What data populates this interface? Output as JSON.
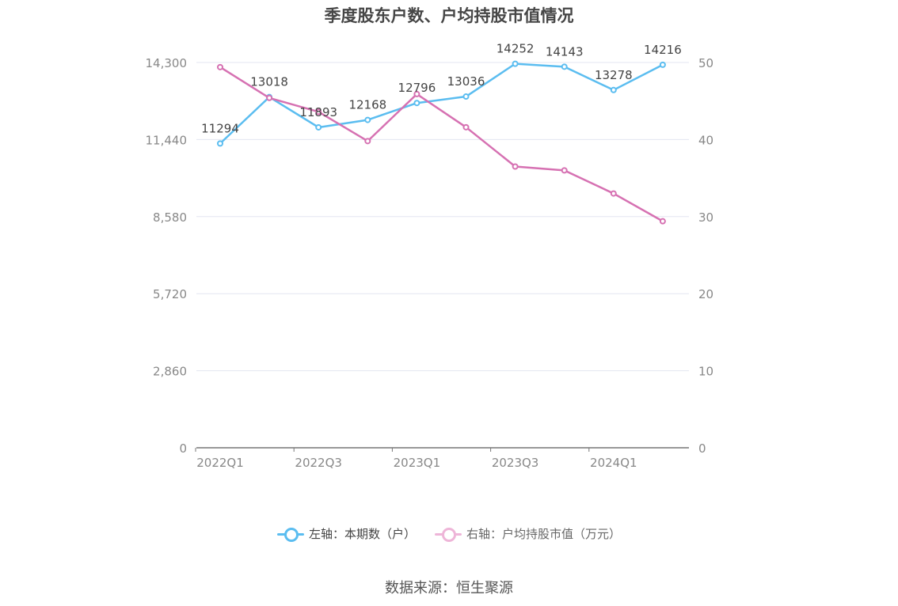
{
  "title": "季度股东户数、户均持股市值情况",
  "source": "数据来源：恒生聚源",
  "colors": {
    "left_series": "#5bbdf0",
    "right_series": "#d671b2",
    "grid": "#e3e6f0",
    "axis": "#888888"
  },
  "chart_data": {
    "type": "line",
    "categories": [
      "2022Q1",
      "2022Q2",
      "2022Q3",
      "2022Q4",
      "2023Q1",
      "2023Q2",
      "2023Q3",
      "2023Q4",
      "2024Q1",
      "2024Q2"
    ],
    "x_tick_labels": [
      "2022Q1",
      "2022Q3",
      "2023Q1",
      "2023Q3",
      "2024Q1"
    ],
    "left_axis": {
      "ticks": [
        "0",
        "2,860",
        "5,720",
        "8,580",
        "11,440",
        "14,300"
      ],
      "range": [
        0,
        14300
      ]
    },
    "right_axis": {
      "ticks": [
        "0",
        "10",
        "20",
        "30",
        "40",
        "50"
      ],
      "range": [
        0,
        50
      ]
    },
    "series": [
      {
        "name": "左轴：本期数（户）",
        "axis": "left",
        "values": [
          11294,
          13018,
          11893,
          12168,
          12796,
          13036,
          14252,
          14143,
          13278,
          14216
        ],
        "labels": [
          "11294",
          "13018",
          "11893",
          "12168",
          "12796",
          "13036",
          "14252",
          "14143",
          "13278",
          "14216"
        ]
      },
      {
        "name": "右轴：户均持股市值（万元）",
        "axis": "right",
        "values": [
          49.4,
          45.4,
          43.6,
          39.8,
          45.9,
          41.6,
          36.5,
          36.0,
          33.0,
          29.4
        ]
      }
    ],
    "grid": true,
    "legend_position": "bottom"
  }
}
